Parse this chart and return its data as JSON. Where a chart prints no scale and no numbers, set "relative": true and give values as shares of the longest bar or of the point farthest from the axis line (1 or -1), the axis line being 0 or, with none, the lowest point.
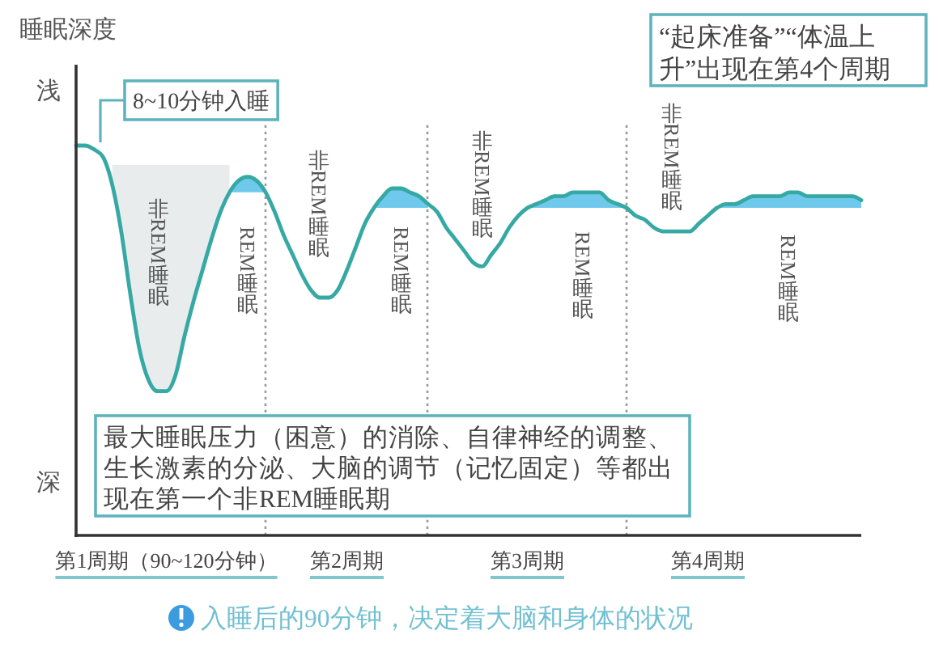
{
  "chart_data": {
    "type": "line",
    "relative": true,
    "ylabel": "睡眠深度",
    "categories": [
      null,
      null,
      null,
      null,
      null,
      null,
      null,
      null,
      null,
      null,
      "第1周期（90~120分钟）",
      null,
      null,
      null,
      null,
      null,
      null,
      null,
      null,
      null,
      null,
      null,
      null,
      null,
      null,
      null,
      null,
      null,
      null,
      null,
      "第2周期",
      null,
      null,
      null,
      null,
      null,
      null,
      null,
      null,
      null,
      null,
      null,
      null,
      null,
      null,
      null,
      null,
      null,
      null,
      null,
      "第3周期",
      null,
      null,
      null,
      null,
      null,
      null,
      null,
      null,
      null,
      null,
      null,
      null,
      null,
      null,
      null,
      null,
      null,
      null,
      null,
      "第4周期",
      null,
      null,
      null,
      null,
      null,
      null,
      null,
      null,
      null,
      null,
      null,
      null,
      null,
      null,
      null,
      null,
      null
    ],
    "tick_labels": "x",
    "series": [
      {
        "type": "area",
        "color": "#e8ecec",
        "values": [
          null,
          null,
          null,
          null,
          0.95,
          0.95,
          0.95,
          0.95,
          0.95,
          0.95,
          0.95,
          0.95,
          0.95,
          0.95,
          0.95,
          0.95,
          0.95,
          0.95,
          null,
          null,
          null,
          null,
          null,
          null,
          null,
          null,
          null,
          null,
          null,
          null,
          null,
          null,
          null,
          null,
          null,
          null,
          null,
          null,
          null,
          null,
          null,
          null,
          null,
          null,
          null,
          null,
          null,
          null,
          null,
          null,
          null,
          null,
          null,
          null,
          null,
          null,
          null,
          null,
          null,
          null,
          null,
          null,
          null,
          null,
          null,
          null,
          null,
          null,
          null,
          null,
          null,
          null,
          null,
          null,
          null,
          null,
          null,
          null,
          null,
          null,
          null,
          null,
          null,
          null,
          null,
          null,
          null,
          null
        ]
      },
      {
        "type": "area",
        "color": "#6fc9ec",
        "values": [
          null,
          null,
          null,
          null,
          null,
          null,
          null,
          null,
          null,
          null,
          null,
          null,
          null,
          null,
          null,
          null,
          null,
          0.88,
          0.91,
          0.92,
          0.91,
          0.88,
          null,
          null,
          null,
          null,
          null,
          null,
          null,
          null,
          null,
          null,
          null,
          0.84,
          0.87,
          0.89,
          0.89,
          0.88,
          0.87,
          0.85,
          null,
          null,
          null,
          null,
          null,
          null,
          null,
          null,
          null,
          null,
          0.84,
          0.85,
          0.86,
          0.87,
          0.87,
          0.88,
          0.88,
          0.88,
          0.88,
          0.86,
          0.85,
          0.84,
          null,
          null,
          null,
          null,
          null,
          null,
          null,
          null,
          null,
          0.84,
          0.85,
          0.85,
          0.86,
          0.87,
          0.87,
          0.87,
          0.87,
          0.88,
          0.88,
          0.87,
          0.87,
          0.87,
          0.87,
          0.87,
          0.87,
          0.86
        ]
      },
      {
        "color": "#36a9a4",
        "values": [
          1.0,
          1.0,
          0.99,
          0.97,
          0.9,
          0.78,
          0.62,
          0.48,
          0.4,
          0.37,
          0.37,
          0.41,
          0.51,
          0.6,
          0.68,
          0.76,
          0.83,
          0.88,
          0.91,
          0.92,
          0.91,
          0.88,
          0.83,
          0.77,
          0.72,
          0.67,
          0.63,
          0.61,
          0.61,
          0.63,
          0.68,
          0.74,
          0.8,
          0.84,
          0.87,
          0.89,
          0.89,
          0.88,
          0.87,
          0.85,
          0.83,
          0.79,
          0.76,
          0.73,
          0.7,
          0.69,
          0.72,
          0.75,
          0.79,
          0.82,
          0.84,
          0.85,
          0.86,
          0.87,
          0.87,
          0.88,
          0.88,
          0.88,
          0.88,
          0.86,
          0.85,
          0.84,
          0.82,
          0.81,
          0.79,
          0.78,
          0.78,
          0.78,
          0.78,
          0.8,
          0.82,
          0.84,
          0.85,
          0.85,
          0.86,
          0.87,
          0.87,
          0.87,
          0.87,
          0.88,
          0.88,
          0.87,
          0.87,
          0.87,
          0.87,
          0.87,
          0.87,
          0.86
        ]
      }
    ],
    "annotations": [
      "浅",
      "深",
      "8~10分钟入睡",
      "“起床准备”“体温上升”出现在第4个周期",
      "最大睡眠压力（困意）的消除、自律神经的调整、生长激素的分泌、大脑的调节（记忆固定）等都出现在第一个非REM睡眠期",
      "入睡后的90分钟，决定着大脑和身体的状况",
      "非REM睡眠",
      "REM睡眠",
      "非REM睡眠",
      "REM睡眠",
      "非REM睡眠",
      "REM睡眠",
      "非REM睡眠",
      "REM睡眠"
    ]
  }
}
